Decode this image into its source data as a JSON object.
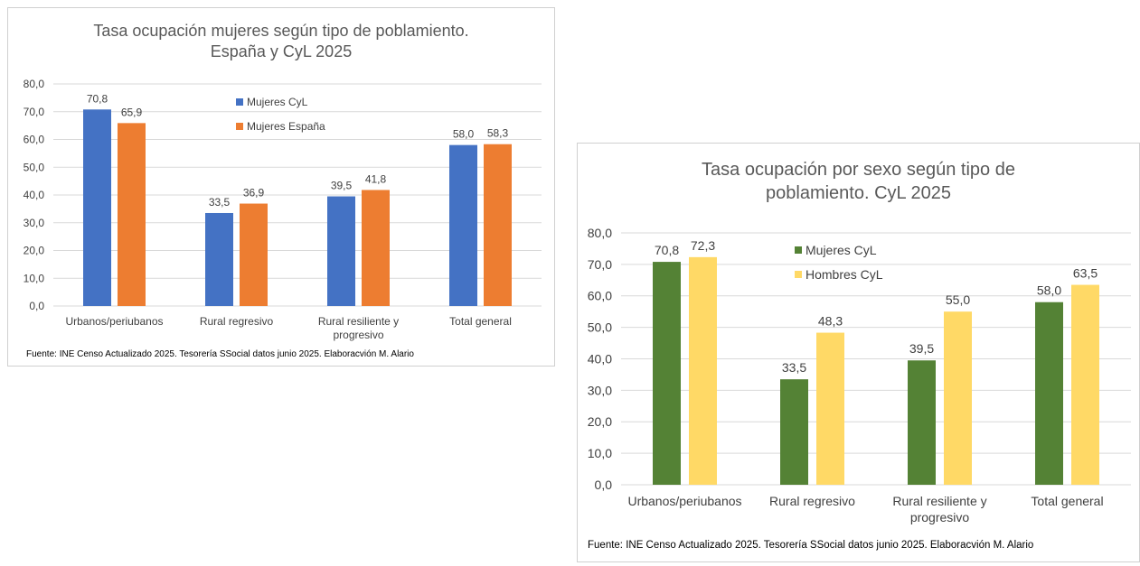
{
  "charts": [
    {
      "title_line1": "Tasa ocupación mujeres según tipo de poblamiento.",
      "title_line2": "España y CyL 2025",
      "source": "Fuente: INE Censo Actualizado 2025. Tesorería SSocial datos junio 2025. Elaboracvión M. Alario",
      "colors": {
        "series_0": "#4472C4",
        "series_1": "#ED7D31",
        "grid": "#d9d9d9",
        "text": "#404040"
      }
    },
    {
      "title_line1": "Tasa ocupación por sexo según tipo de",
      "title_line2": "poblamiento. CyL 2025",
      "source": "Fuente: INE Censo Actualizado 2025. Tesorería SSocial datos junio 2025. Elaboracvión M. Alario",
      "colors": {
        "series_0": "#548235",
        "series_1": "#FFD966",
        "grid": "#d9d9d9",
        "text": "#404040"
      }
    }
  ],
  "chart_data": [
    {
      "type": "bar",
      "title": "Tasa ocupación mujeres según tipo de poblamiento. España y CyL 2025",
      "categories": [
        [
          "Urbanos/periubanos"
        ],
        [
          "Rural regresivo"
        ],
        [
          "Rural resiliente y",
          "progresivo"
        ],
        [
          "Total general"
        ]
      ],
      "series": [
        {
          "name": "Mujeres CyL",
          "values": [
            70.8,
            33.5,
            39.5,
            58.0
          ],
          "labels": [
            "70,8",
            "33,5",
            "39,5",
            "58,0"
          ]
        },
        {
          "name": "Mujeres España",
          "values": [
            65.9,
            36.9,
            41.8,
            58.3
          ],
          "labels": [
            "65,9",
            "36,9",
            "41,8",
            "58,3"
          ]
        }
      ],
      "ylim": [
        0,
        80
      ],
      "yticks": [
        "0,0",
        "10,0",
        "20,0",
        "30,0",
        "40,0",
        "50,0",
        "60,0",
        "70,0",
        "80,0"
      ],
      "grid": true,
      "legend_position": "top-center"
    },
    {
      "type": "bar",
      "title": "Tasa ocupación por sexo según tipo de poblamiento. CyL 2025",
      "categories": [
        [
          "Urbanos/periubanos"
        ],
        [
          "Rural regresivo"
        ],
        [
          "Rural resiliente y",
          "progresivo"
        ],
        [
          "Total general"
        ]
      ],
      "series": [
        {
          "name": "Mujeres CyL",
          "values": [
            70.8,
            33.5,
            39.5,
            58.0
          ],
          "labels": [
            "70,8",
            "33,5",
            "39,5",
            "58,0"
          ]
        },
        {
          "name": "Hombres CyL",
          "values": [
            72.3,
            48.3,
            55.0,
            63.5
          ],
          "labels": [
            "72,3",
            "48,3",
            "55,0",
            "63,5"
          ]
        }
      ],
      "ylim": [
        0,
        80
      ],
      "yticks": [
        "0,0",
        "10,0",
        "20,0",
        "30,0",
        "40,0",
        "50,0",
        "60,0",
        "70,0",
        "80,0"
      ],
      "grid": true,
      "legend_position": "top-center"
    }
  ]
}
